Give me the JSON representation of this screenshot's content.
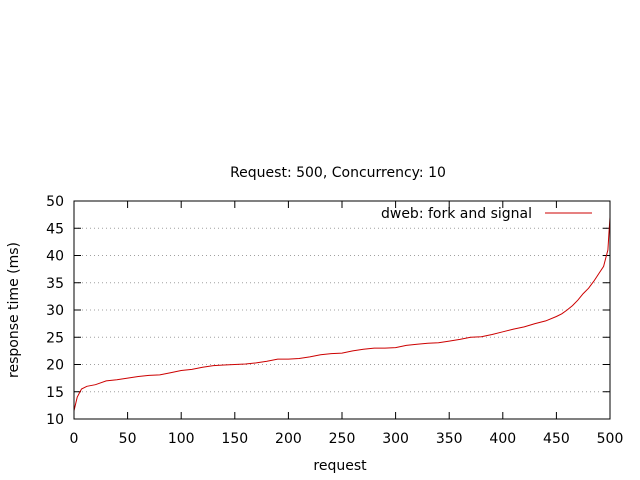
{
  "chart_data": {
    "type": "line",
    "title": "Request: 500, Concurrency: 10",
    "xlabel": "request",
    "ylabel": "response time (ms)",
    "xlim": [
      0,
      500
    ],
    "ylim": [
      10,
      50
    ],
    "xticks": [
      0,
      50,
      100,
      150,
      200,
      250,
      300,
      350,
      400,
      450,
      500
    ],
    "yticks": [
      10,
      15,
      20,
      25,
      30,
      35,
      40,
      45,
      50
    ],
    "grid": "horizontal dotted",
    "legend_position": "top-right",
    "series": [
      {
        "name": "dweb: fork and signal",
        "color": "#cc0000",
        "x": [
          0,
          3,
          7,
          12,
          20,
          30,
          40,
          50,
          60,
          70,
          80,
          90,
          100,
          110,
          120,
          130,
          140,
          150,
          160,
          170,
          180,
          190,
          200,
          210,
          220,
          230,
          240,
          250,
          260,
          270,
          280,
          290,
          300,
          310,
          320,
          330,
          340,
          350,
          360,
          370,
          380,
          390,
          400,
          410,
          420,
          430,
          440,
          450,
          455,
          460,
          465,
          470,
          475,
          480,
          485,
          490,
          494,
          496,
          498,
          499,
          500
        ],
        "y": [
          11.5,
          14,
          15.5,
          16,
          16.3,
          17,
          17.2,
          17.5,
          17.8,
          18,
          18.1,
          18.5,
          18.9,
          19.1,
          19.5,
          19.8,
          19.9,
          20,
          20.1,
          20.3,
          20.6,
          21,
          21,
          21.1,
          21.4,
          21.8,
          22,
          22.1,
          22.5,
          22.8,
          23,
          23,
          23.1,
          23.5,
          23.7,
          23.9,
          24,
          24.3,
          24.6,
          25,
          25.1,
          25.5,
          26,
          26.5,
          26.9,
          27.5,
          28,
          28.8,
          29.3,
          30,
          30.8,
          31.8,
          33,
          34,
          35.3,
          36.8,
          38,
          39.5,
          41,
          44,
          47
        ]
      }
    ]
  }
}
